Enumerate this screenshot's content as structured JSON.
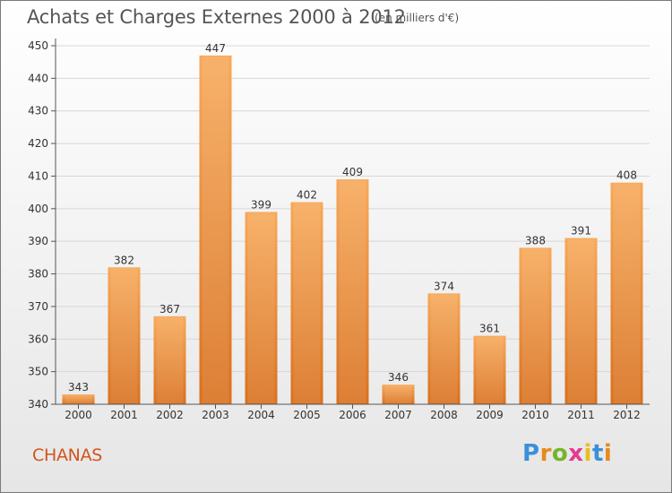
{
  "chart_data": {
    "type": "bar",
    "title": "Achats et Charges Externes 2000 à 2012",
    "subtitle": "(en milliers d'€)",
    "categories": [
      "2000",
      "2001",
      "2002",
      "2003",
      "2004",
      "2005",
      "2006",
      "2007",
      "2008",
      "2009",
      "2010",
      "2011",
      "2012"
    ],
    "values": [
      343,
      382,
      367,
      447,
      399,
      402,
      409,
      346,
      374,
      361,
      388,
      391,
      408
    ],
    "ylim": [
      340,
      450
    ],
    "yticks": [
      340,
      350,
      360,
      370,
      380,
      390,
      400,
      410,
      420,
      430,
      440,
      450
    ],
    "grid": true,
    "bar_color_top": "#f7a95a",
    "bar_color_bottom": "#d9711f"
  },
  "footer": {
    "commune": "CHANAS",
    "logo": "Proxiti",
    "logo_colors": [
      "#3c8fd8",
      "#e8891c",
      "#74b52b",
      "#e53a8f",
      "#e8c01c",
      "#3c8fd8",
      "#e8891c"
    ]
  }
}
